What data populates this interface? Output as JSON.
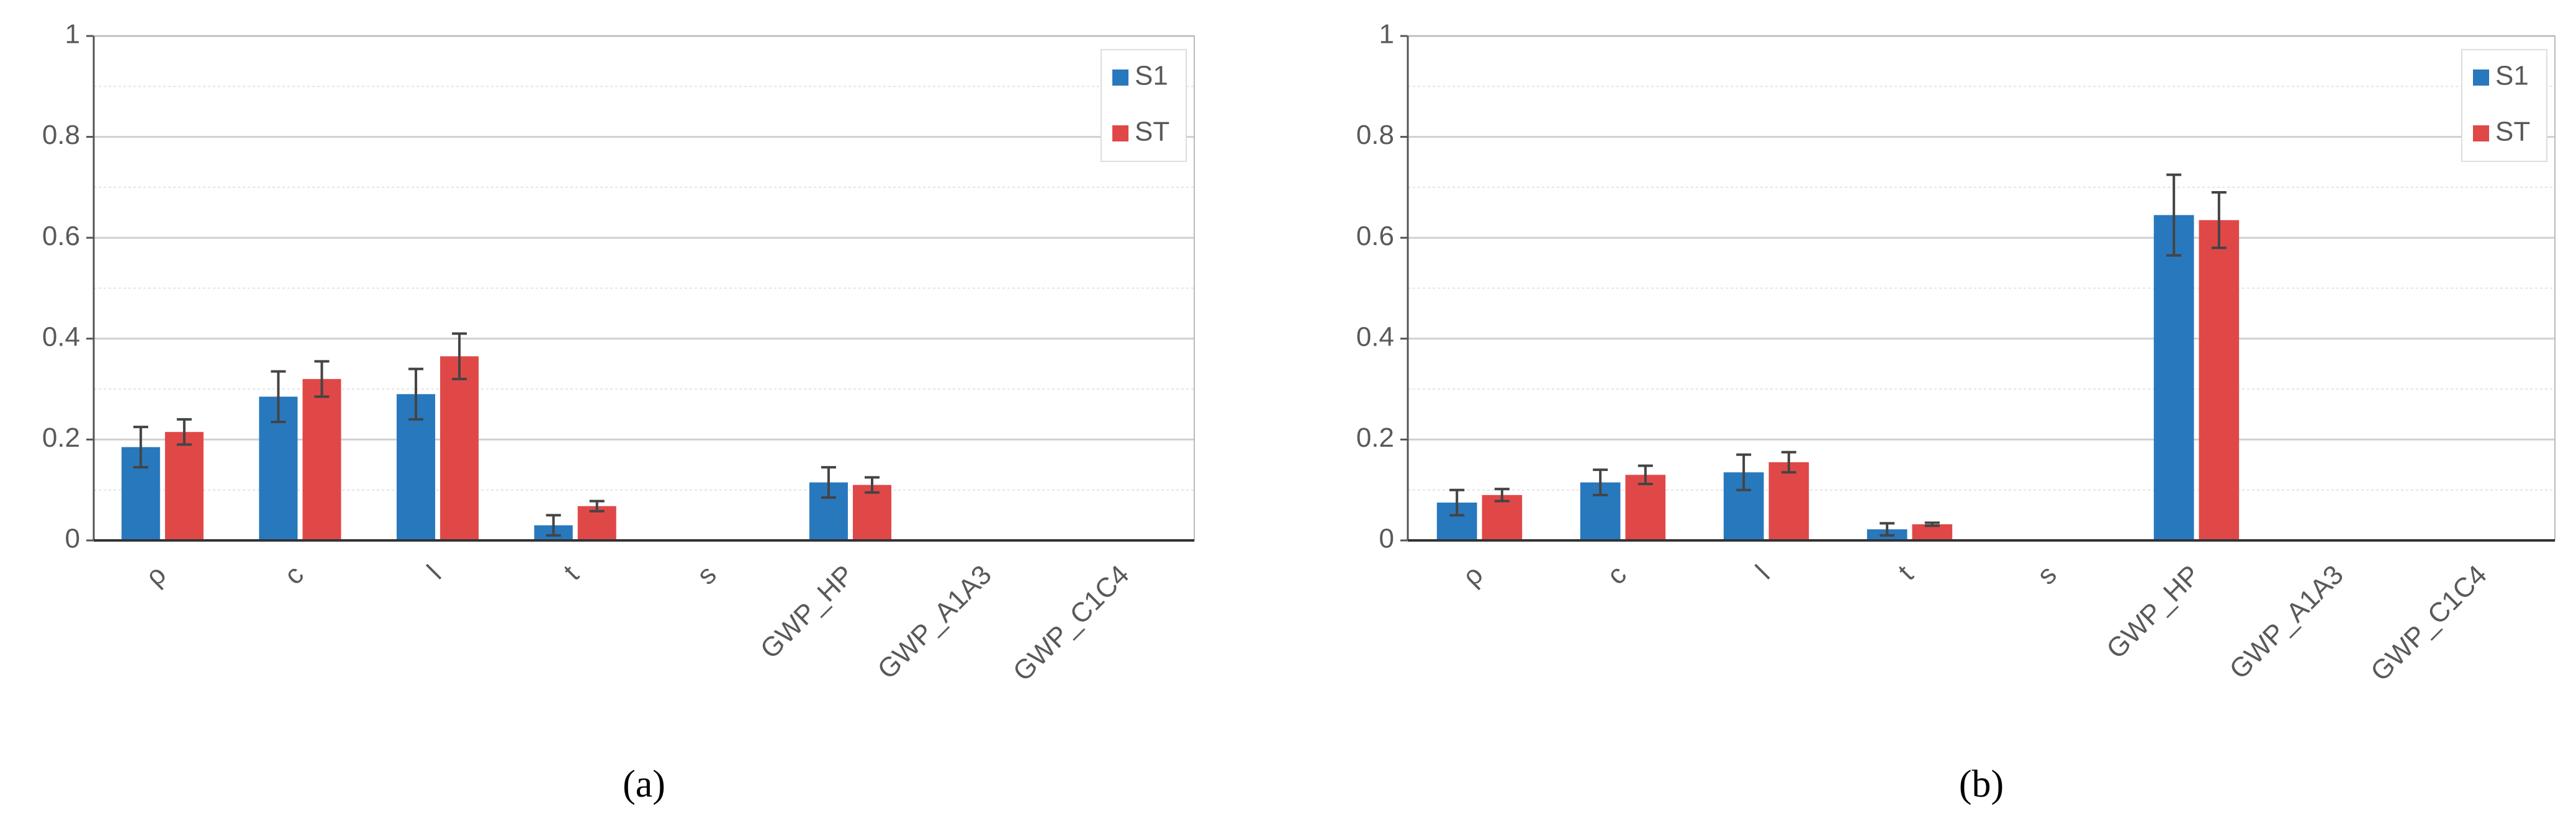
{
  "chart_data": [
    {
      "type": "bar",
      "label": "(a)",
      "categories": [
        "ρ",
        "c",
        "l",
        "t",
        "s",
        "GWP_HP",
        "GWP_A1A3",
        "GWP_C1C4"
      ],
      "series": [
        {
          "name": "S1",
          "color": "#2878be",
          "values": [
            0.185,
            0.285,
            0.29,
            0.03,
            0.002,
            0.115,
            0,
            0
          ],
          "errors": [
            0.04,
            0.05,
            0.05,
            0.02,
            0,
            0.03,
            0,
            0
          ]
        },
        {
          "name": "ST",
          "color": "#e04848",
          "values": [
            0.215,
            0.32,
            0.365,
            0.068,
            0,
            0.11,
            0,
            0
          ],
          "errors": [
            0.025,
            0.035,
            0.045,
            0.01,
            0,
            0.015,
            0,
            0
          ]
        }
      ],
      "ylim": [
        0,
        1
      ],
      "yticks": [
        0,
        0.2,
        0.4,
        0.6,
        0.8,
        1
      ],
      "yminorticks": [
        0.1,
        0.3,
        0.5,
        0.7,
        0.9
      ],
      "grid": true,
      "legend": "top-right"
    },
    {
      "type": "bar",
      "label": "(b)",
      "categories": [
        "ρ",
        "c",
        "l",
        "t",
        "s",
        "GWP_HP",
        "GWP_A1A3",
        "GWP_C1C4"
      ],
      "series": [
        {
          "name": "S1",
          "color": "#2878be",
          "values": [
            0.075,
            0.115,
            0.135,
            0.022,
            0.002,
            0.645,
            0.002,
            0.002
          ],
          "errors": [
            0.025,
            0.025,
            0.035,
            0.012,
            0,
            0.08,
            0,
            0
          ]
        },
        {
          "name": "ST",
          "color": "#e04848",
          "values": [
            0.09,
            0.13,
            0.155,
            0.032,
            0.002,
            0.635,
            0.002,
            0
          ],
          "errors": [
            0.012,
            0.018,
            0.02,
            0.003,
            0,
            0.055,
            0,
            0
          ]
        }
      ],
      "ylim": [
        0,
        1
      ],
      "yticks": [
        0,
        0.2,
        0.4,
        0.6,
        0.8,
        1
      ],
      "yminorticks": [
        0.1,
        0.3,
        0.5,
        0.7,
        0.9
      ],
      "grid": true,
      "legend": "top-right"
    }
  ]
}
